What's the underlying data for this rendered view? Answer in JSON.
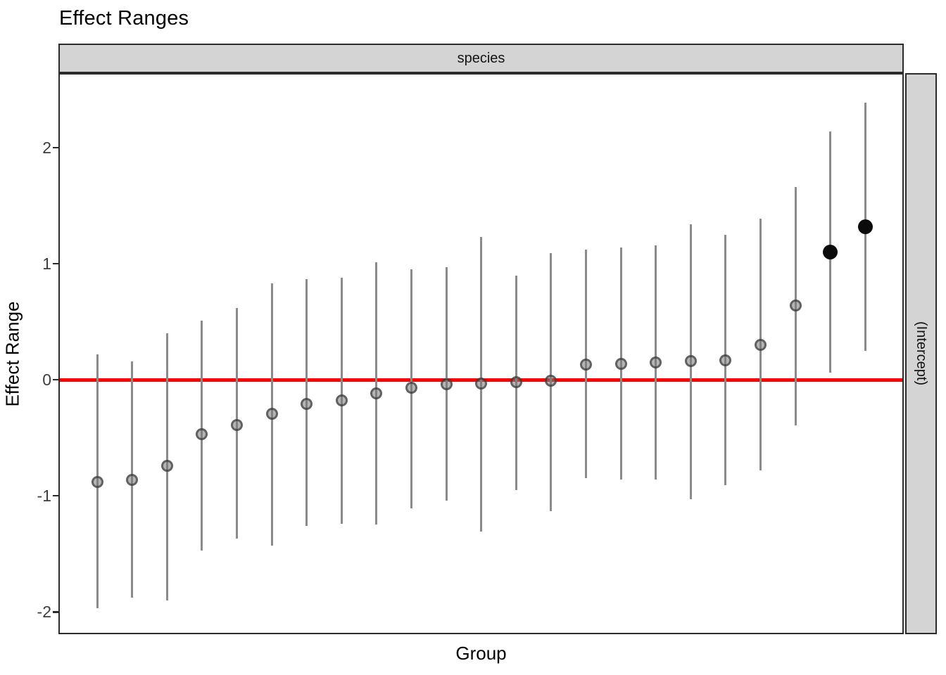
{
  "page_title": "Effect Ranges",
  "facets": {
    "top_label": "species",
    "right_label": "(Intercept)"
  },
  "axes": {
    "x_title": "Group",
    "y_title": "Effect Range",
    "y_ticks": [
      -2,
      -1,
      0,
      1,
      2
    ]
  },
  "chart_data": {
    "type": "pointrange",
    "title": "Effect Ranges",
    "xlabel": "Group",
    "ylabel": "Effect Range",
    "facet_column_label": "species",
    "facet_row_label": "(Intercept)",
    "ylim": [
      -2.18,
      2.63
    ],
    "y_ticks": [
      -2,
      -1,
      0,
      1,
      2
    ],
    "reference_line_y": 0,
    "grid": false,
    "legend": "none",
    "n_groups": 23,
    "points": [
      {
        "group": 1,
        "estimate": -0.88,
        "lower": -1.97,
        "upper": 0.22,
        "highlight": false
      },
      {
        "group": 2,
        "estimate": -0.86,
        "lower": -1.88,
        "upper": 0.16,
        "highlight": false
      },
      {
        "group": 3,
        "estimate": -0.74,
        "lower": -1.9,
        "upper": 0.4,
        "highlight": false
      },
      {
        "group": 4,
        "estimate": -0.47,
        "lower": -1.47,
        "upper": 0.51,
        "highlight": false
      },
      {
        "group": 5,
        "estimate": -0.39,
        "lower": -1.37,
        "upper": 0.62,
        "highlight": false
      },
      {
        "group": 6,
        "estimate": -0.29,
        "lower": -1.43,
        "upper": 0.83,
        "highlight": false
      },
      {
        "group": 7,
        "estimate": -0.21,
        "lower": -1.26,
        "upper": 0.87,
        "highlight": false
      },
      {
        "group": 8,
        "estimate": -0.18,
        "lower": -1.24,
        "upper": 0.88,
        "highlight": false
      },
      {
        "group": 9,
        "estimate": -0.12,
        "lower": -1.25,
        "upper": 1.01,
        "highlight": false
      },
      {
        "group": 10,
        "estimate": -0.07,
        "lower": -1.11,
        "upper": 0.95,
        "highlight": false
      },
      {
        "group": 11,
        "estimate": -0.04,
        "lower": -1.04,
        "upper": 0.97,
        "highlight": false
      },
      {
        "group": 12,
        "estimate": -0.03,
        "lower": -1.31,
        "upper": 1.23,
        "highlight": false
      },
      {
        "group": 13,
        "estimate": -0.02,
        "lower": -0.95,
        "upper": 0.9,
        "highlight": false
      },
      {
        "group": 14,
        "estimate": -0.01,
        "lower": -1.13,
        "upper": 1.09,
        "highlight": false
      },
      {
        "group": 15,
        "estimate": 0.13,
        "lower": -0.85,
        "upper": 1.12,
        "highlight": false
      },
      {
        "group": 16,
        "estimate": 0.14,
        "lower": -0.86,
        "upper": 1.14,
        "highlight": false
      },
      {
        "group": 17,
        "estimate": 0.15,
        "lower": -0.86,
        "upper": 1.16,
        "highlight": false
      },
      {
        "group": 18,
        "estimate": 0.16,
        "lower": -1.03,
        "upper": 1.34,
        "highlight": false
      },
      {
        "group": 19,
        "estimate": 0.17,
        "lower": -0.91,
        "upper": 1.25,
        "highlight": false
      },
      {
        "group": 20,
        "estimate": 0.3,
        "lower": -0.78,
        "upper": 1.39,
        "highlight": false
      },
      {
        "group": 21,
        "estimate": 0.64,
        "lower": -0.39,
        "upper": 1.66,
        "highlight": false
      },
      {
        "group": 22,
        "estimate": 1.1,
        "lower": 0.06,
        "upper": 2.14,
        "highlight": true
      },
      {
        "group": 23,
        "estimate": 1.32,
        "lower": 0.25,
        "upper": 2.39,
        "highlight": true
      }
    ]
  },
  "colors": {
    "reference_line": "#fe0000",
    "range_bar": "#8b8b8b",
    "point_fill": "#787878",
    "point_stroke": "#2a2a2a",
    "highlight_point": "#0b0b0b",
    "strip_background": "#d4d4d4",
    "panel_border": "#2b2b2b",
    "axis_text": "#3d3d3d"
  }
}
